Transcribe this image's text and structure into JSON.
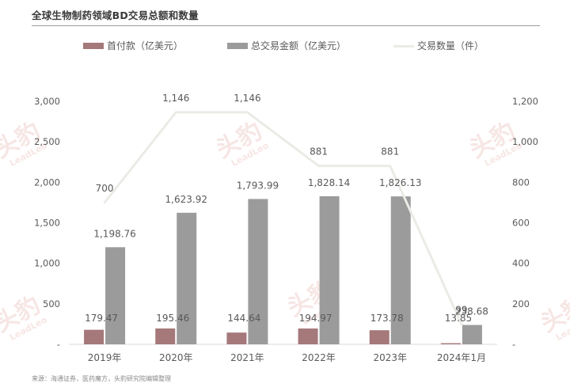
{
  "title": "全球生物制药领域BD交易总额和数量",
  "source": "来源：海通证券，医药魔方，头豹研究院编辑整理",
  "watermark": {
    "cn": "头豹",
    "en": "LeadLeo"
  },
  "colors": {
    "upfront": "#a5787a",
    "total": "#9b9b9b",
    "deals": "#ebebe6",
    "axis_text": "#595959",
    "baseline": "#d9d9d9"
  },
  "chart_data": {
    "type": "bar",
    "title": "全球生物制药领域BD交易总额和数量",
    "categories": [
      "2019年",
      "2020年",
      "2021年",
      "2022年",
      "2023年",
      "2024年1月"
    ],
    "series": [
      {
        "name": "首付款（亿美元）",
        "type": "bar",
        "axis": "left",
        "values": [
          179.47,
          195.46,
          144.64,
          194.97,
          173.78,
          13.85
        ],
        "labels": [
          "179.47",
          "195.46",
          "144.64",
          "194.97",
          "173.78",
          "13.85"
        ]
      },
      {
        "name": "总交易金额（亿美元）",
        "type": "bar",
        "axis": "left",
        "values": [
          1198.76,
          1623.92,
          1793.99,
          1828.14,
          1826.13,
          238.68
        ],
        "labels": [
          "1,198.76",
          "1,623.92",
          "1,793.99",
          "1,828.14",
          "1,826.13",
          "238.68"
        ]
      },
      {
        "name": "交易数量（件）",
        "type": "line",
        "axis": "right",
        "values": [
          700,
          1146,
          1146,
          881,
          881,
          99
        ],
        "labels": [
          "700",
          "1,146",
          "1,146",
          "881",
          "881",
          "99"
        ]
      }
    ],
    "y_left": {
      "min": 0,
      "max": 3000,
      "ticks": [
        "-",
        "500",
        "1,000",
        "1,500",
        "2,000",
        "2,500",
        "3,000"
      ]
    },
    "y_right": {
      "min": 0,
      "max": 1200,
      "ticks": [
        "-",
        "200",
        "400",
        "600",
        "800",
        "1,000",
        "1,200"
      ]
    },
    "grid": false,
    "legend_position": "top"
  }
}
